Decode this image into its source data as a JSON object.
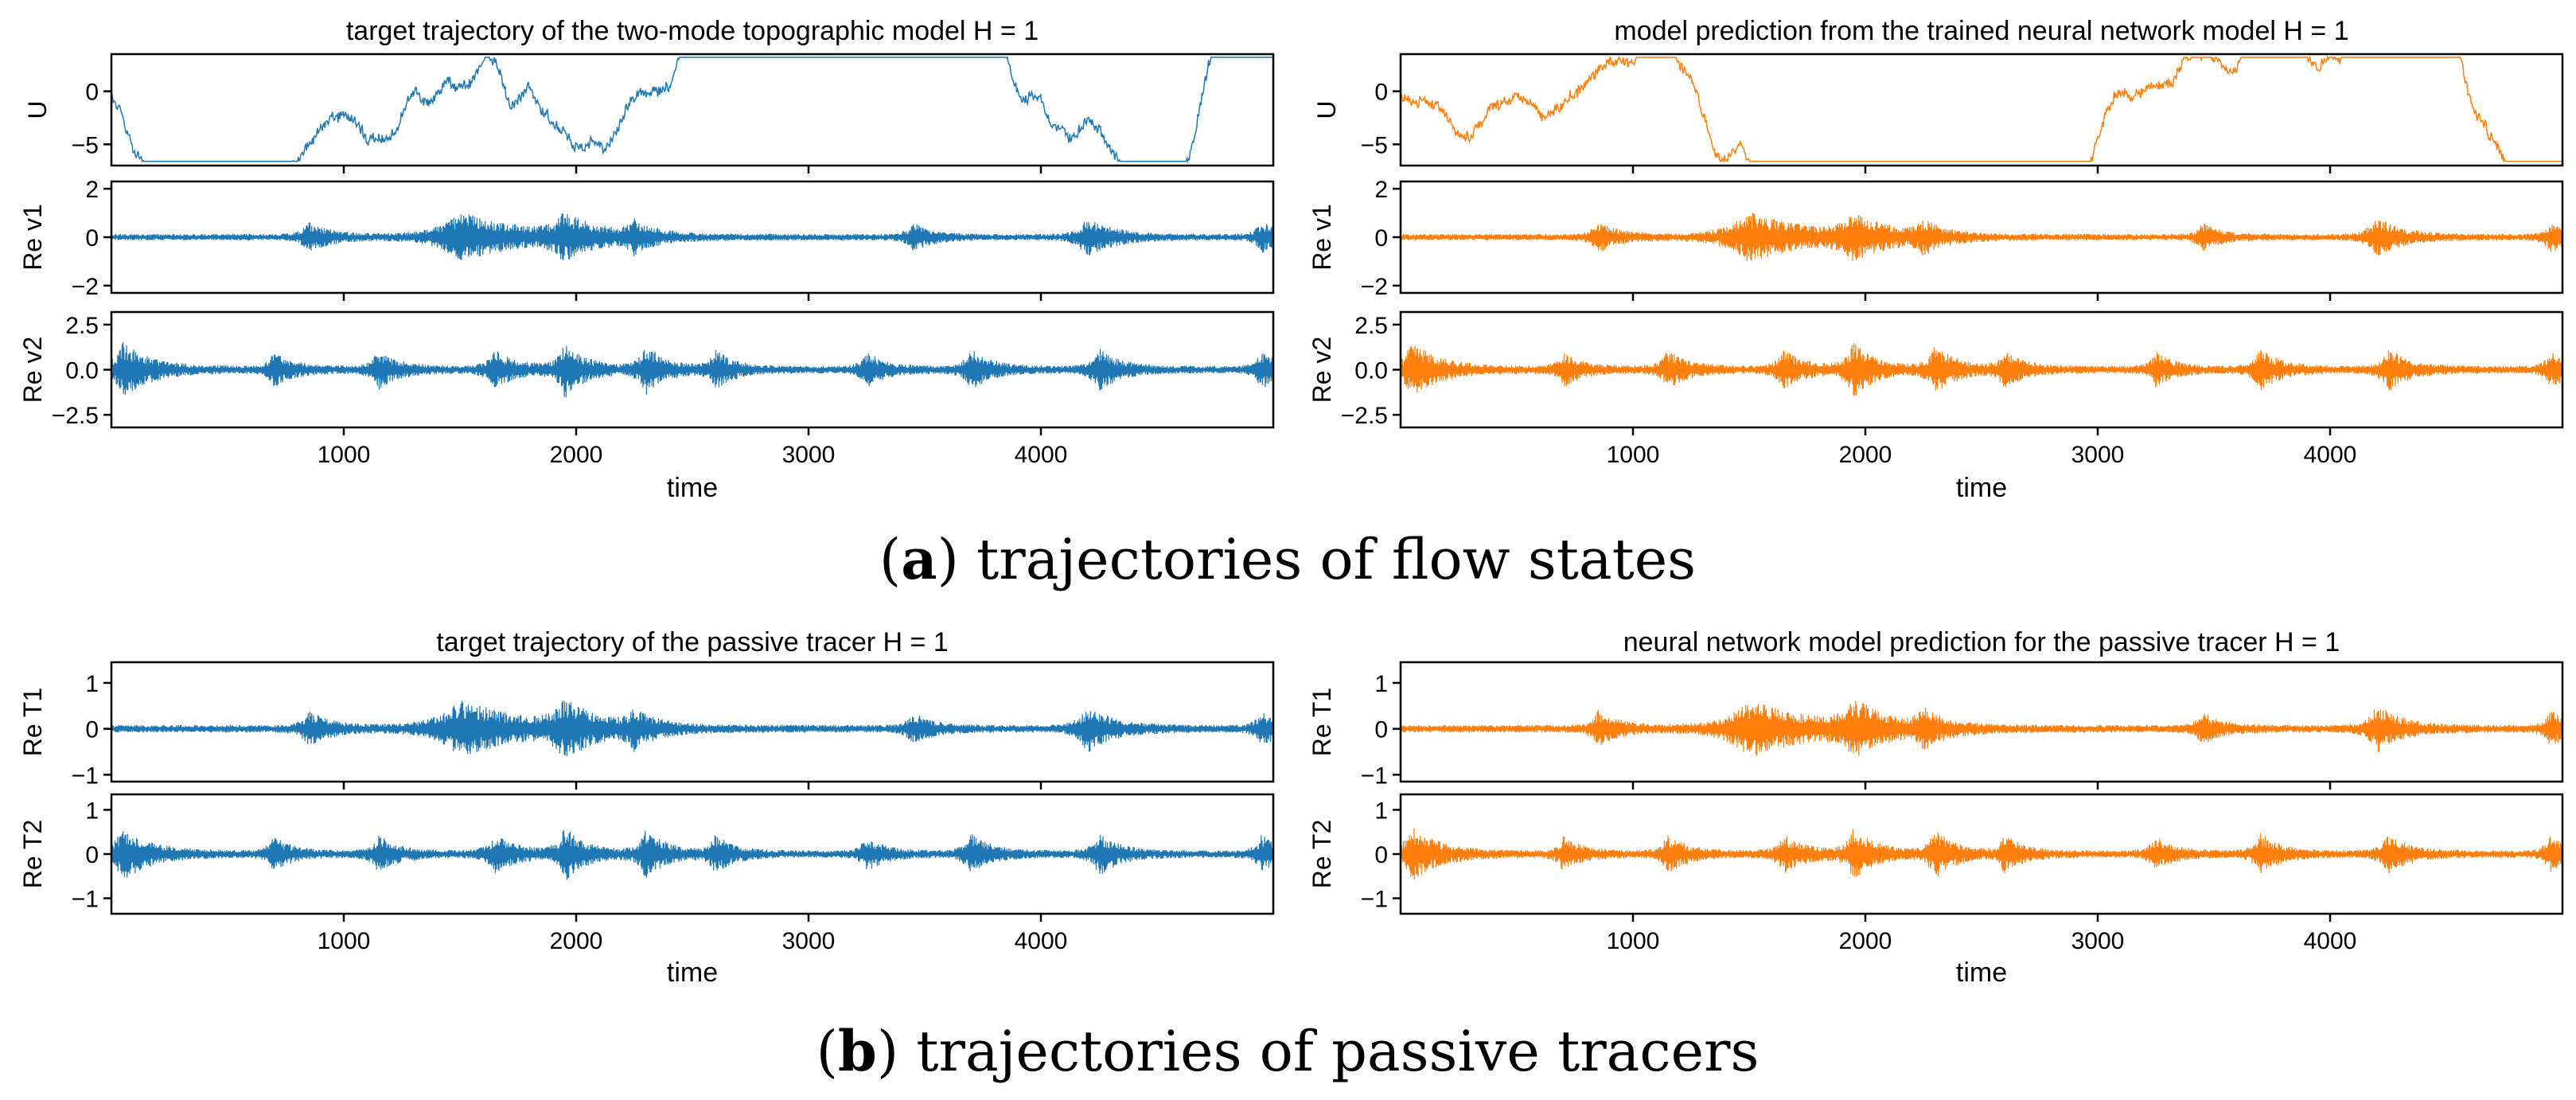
{
  "colors": {
    "target": "#1f77b4",
    "model": "#ff7f0e",
    "axis": "#000000",
    "background": "#ffffff"
  },
  "captions": [
    {
      "letter": "a",
      "text": " trajectories of flow states"
    },
    {
      "letter": "b",
      "text": " trajectories of passive tracers"
    }
  ],
  "chart_data": [
    {
      "type": "line",
      "title": "target trajectory of the two-mode topographic model  H = 1",
      "xlabel": "time",
      "xlim": [
        0,
        5000
      ],
      "xticks": [
        1000,
        2000,
        3000,
        4000
      ],
      "xtick_labels": [
        "1000",
        "2000",
        "3000",
        "4000"
      ],
      "color": "#1f77b4",
      "seed": 11,
      "panels": [
        {
          "ylabel": "U",
          "ylim": [
            -7,
            3.5
          ],
          "yticks": [
            0,
            -5
          ],
          "ytick_labels": [
            "0",
            "−5"
          ],
          "signal": "U"
        },
        {
          "ylabel": "Re v1",
          "ylim": [
            -2.3,
            2.3
          ],
          "yticks": [
            2,
            0,
            -2
          ],
          "ytick_labels": [
            "2",
            "0",
            "−2"
          ],
          "signal": "v1",
          "amp": 1.0
        },
        {
          "ylabel": "Re v2",
          "ylim": [
            -3.2,
            3.2
          ],
          "yticks": [
            2.5,
            0,
            -2.5
          ],
          "ytick_labels": [
            "2.5",
            "0.0",
            "−2.5"
          ],
          "signal": "v2",
          "amp": 1.55
        }
      ]
    },
    {
      "type": "line",
      "title": "model prediction from the trained neural network model  H = 1",
      "xlabel": "time",
      "xlim": [
        0,
        5000
      ],
      "xticks": [
        1000,
        2000,
        3000,
        4000
      ],
      "xtick_labels": [
        "1000",
        "2000",
        "3000",
        "4000"
      ],
      "color": "#ff7f0e",
      "seed": 27,
      "panels": [
        {
          "ylabel": "U",
          "ylim": [
            -7,
            3.5
          ],
          "yticks": [
            0,
            -5
          ],
          "ytick_labels": [
            "0",
            "−5"
          ],
          "signal": "U"
        },
        {
          "ylabel": "Re v1",
          "ylim": [
            -2.3,
            2.3
          ],
          "yticks": [
            2,
            0,
            -2
          ],
          "ytick_labels": [
            "2",
            "0",
            "−2"
          ],
          "signal": "v1",
          "amp": 1.0
        },
        {
          "ylabel": "Re v2",
          "ylim": [
            -3.2,
            3.2
          ],
          "yticks": [
            2.5,
            0,
            -2.5
          ],
          "ytick_labels": [
            "2.5",
            "0.0",
            "−2.5"
          ],
          "signal": "v2",
          "amp": 1.55
        }
      ]
    },
    {
      "type": "line",
      "title": "target trajectory of the passive tracer  H = 1",
      "xlabel": "time",
      "xlim": [
        0,
        5000
      ],
      "xticks": [
        1000,
        2000,
        3000,
        4000
      ],
      "xtick_labels": [
        "1000",
        "2000",
        "3000",
        "4000"
      ],
      "color": "#1f77b4",
      "seed": 41,
      "panels": [
        {
          "ylabel": "Re T1",
          "ylim": [
            -1.15,
            1.45
          ],
          "yticks": [
            1,
            0,
            -1
          ],
          "ytick_labels": [
            "1",
            "0",
            "−1"
          ],
          "signal": "v1",
          "amp": 0.62
        },
        {
          "ylabel": "Re T2",
          "ylim": [
            -1.35,
            1.35
          ],
          "yticks": [
            1,
            0,
            -1
          ],
          "ytick_labels": [
            "1",
            "0",
            "−1"
          ],
          "signal": "v2",
          "amp": 0.62
        }
      ]
    },
    {
      "type": "line",
      "title": "neural network model prediction for the passive tracer  H = 1",
      "xlabel": "time",
      "xlim": [
        0,
        5000
      ],
      "xticks": [
        1000,
        2000,
        3000,
        4000
      ],
      "xtick_labels": [
        "1000",
        "2000",
        "3000",
        "4000"
      ],
      "color": "#ff7f0e",
      "seed": 57,
      "panels": [
        {
          "ylabel": "Re T1",
          "ylim": [
            -1.15,
            1.45
          ],
          "yticks": [
            1,
            0,
            -1
          ],
          "ytick_labels": [
            "1",
            "0",
            "−1"
          ],
          "signal": "v1",
          "amp": 0.62
        },
        {
          "ylabel": "Re T2",
          "ylim": [
            -1.35,
            1.35
          ],
          "yticks": [
            1,
            0,
            -1
          ],
          "ytick_labels": [
            "1",
            "0",
            "−1"
          ],
          "signal": "v2",
          "amp": 0.62
        }
      ]
    }
  ]
}
